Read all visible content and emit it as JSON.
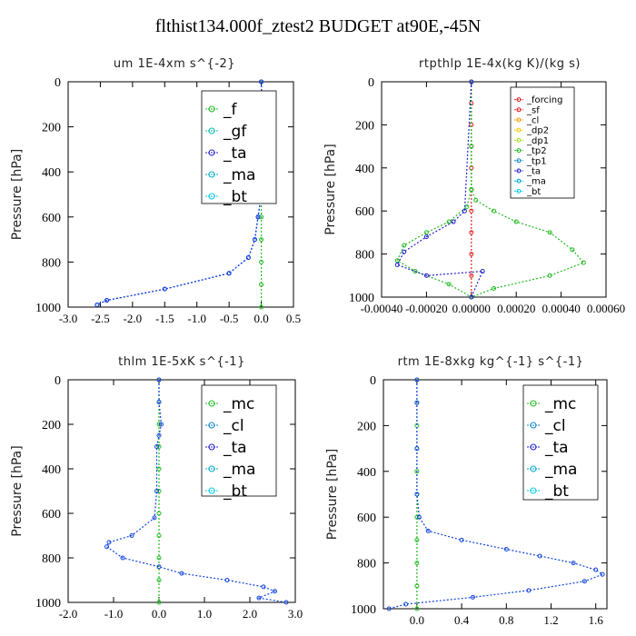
{
  "page_title": "flthist134.000f_ztest2  BUDGET at90E,-45N",
  "colors": {
    "green": "#22bb22",
    "blue": "#1144dd",
    "cyan": "#00ccee",
    "navy": "#2222cc",
    "red": "#dd2222",
    "orange": "#ff9900",
    "lime": "#88ee00",
    "yellowgreen": "#aadd22"
  },
  "chart_data": [
    {
      "type": "line",
      "title": "um  1E-4xm s^{-2}",
      "ylabel": "Pressure [hPa]",
      "xlim": [
        -3.0,
        0.5
      ],
      "ylim": [
        1000,
        0
      ],
      "xticks": [
        "-3.0",
        "-2.5",
        "-2.0",
        "-1.5",
        "-1.0",
        "-0.5",
        "0.0",
        "0.5"
      ],
      "xtick_values": [
        -3.0,
        -2.5,
        -2.0,
        -1.5,
        -1.0,
        -0.5,
        0.0,
        0.5
      ],
      "yticks": [
        "0",
        "200",
        "400",
        "600",
        "800",
        "1000"
      ],
      "ytick_values": [
        0,
        200,
        400,
        600,
        800,
        1000
      ],
      "legend": [
        {
          "name": "_f",
          "color": "#22bb22",
          "marker": "o"
        },
        {
          "name": "_gf",
          "color": "#00bbaa",
          "marker": "*"
        },
        {
          "name": "_ta",
          "color": "#2222cc",
          "marker": "+"
        },
        {
          "name": "_ma",
          "color": "#00aacc",
          "marker": "-"
        },
        {
          "name": "_bt",
          "color": "#00ccee",
          "marker": "d"
        }
      ],
      "series": [
        {
          "name": "_f",
          "color": "#22bb22",
          "x": [
            0,
            0,
            0,
            0,
            0,
            0,
            0,
            0,
            0,
            0,
            0
          ],
          "y": [
            0,
            100,
            200,
            300,
            400,
            500,
            600,
            700,
            800,
            900,
            1000
          ]
        },
        {
          "name": "_ta",
          "color": "#2222cc",
          "x": [
            0,
            0,
            0,
            0,
            0,
            0,
            -0.05,
            -0.1,
            -0.2,
            -0.5,
            -1.5,
            -2.4,
            -2.55
          ],
          "y": [
            0,
            100,
            200,
            300,
            400,
            500,
            600,
            700,
            780,
            850,
            920,
            970,
            990
          ]
        },
        {
          "name": "_bt",
          "color": "#1144dd",
          "x": [
            0,
            0,
            0,
            0,
            0,
            0,
            -0.05,
            -0.1,
            -0.2,
            -0.5,
            -1.5,
            -2.4,
            -2.55
          ],
          "y": [
            0,
            100,
            200,
            300,
            400,
            500,
            600,
            700,
            780,
            850,
            920,
            970,
            990
          ]
        }
      ]
    },
    {
      "type": "line",
      "title": "rtpthlp  1E-4x(kg K)/(kg s)",
      "ylabel": "Pressure [hPa]",
      "xlim": [
        -0.0004,
        0.0006
      ],
      "ylim": [
        1000,
        0
      ],
      "xticks": [
        "-0.00040",
        "-0.00020",
        "0.00000",
        "0.00020",
        "0.00040",
        "0.00060"
      ],
      "xtick_values": [
        -0.0004,
        -0.0002,
        0.0,
        0.0002,
        0.0004,
        0.0006
      ],
      "yticks": [
        "0",
        "200",
        "400",
        "600",
        "800",
        "1000"
      ],
      "ytick_values": [
        0,
        200,
        400,
        600,
        800,
        1000
      ],
      "legend": [
        {
          "name": "_forcing",
          "color": "#dd2222",
          "marker": "o"
        },
        {
          "name": "_sf",
          "color": "#dd2222",
          "marker": "*"
        },
        {
          "name": "_cl",
          "color": "#ff9900",
          "marker": "*"
        },
        {
          "name": "_dp2",
          "color": "#ffcc00",
          "marker": "o"
        },
        {
          "name": "_dp1",
          "color": "#aadd22",
          "marker": "*"
        },
        {
          "name": "_tp2",
          "color": "#22bb22",
          "marker": "o"
        },
        {
          "name": "_tp1",
          "color": "#1188cc",
          "marker": "*"
        },
        {
          "name": "_ta",
          "color": "#2222cc",
          "marker": "+"
        },
        {
          "name": "_ma",
          "color": "#00aacc",
          "marker": "-"
        },
        {
          "name": "_bt",
          "color": "#00ccee",
          "marker": "d"
        }
      ],
      "series": [
        {
          "name": "_forcing",
          "color": "#dd2222",
          "x": [
            0,
            0,
            0,
            0,
            0,
            0,
            0,
            0,
            0,
            0,
            0
          ],
          "y": [
            0,
            100,
            200,
            300,
            400,
            500,
            600,
            700,
            800,
            900,
            1000
          ]
        },
        {
          "name": "_dp1",
          "color": "#22bb22",
          "x": [
            0,
            0,
            0,
            2e-05,
            0.0001,
            0.0002,
            0.00035,
            0.00045,
            0.0005,
            0.00035,
            0.0001,
            0
          ],
          "y": [
            0,
            300,
            500,
            550,
            600,
            650,
            700,
            780,
            840,
            900,
            960,
            1000
          ]
        },
        {
          "name": "_tp2",
          "color": "#22bb22",
          "x": [
            0,
            0,
            -2e-05,
            -0.0001,
            -0.0002,
            -0.0003,
            -0.00033,
            -0.00025,
            -0.0001,
            0
          ],
          "y": [
            0,
            500,
            580,
            650,
            700,
            760,
            830,
            880,
            940,
            1000
          ]
        },
        {
          "name": "_ta",
          "color": "#2222cc",
          "x": [
            0,
            -3e-05,
            -8e-05,
            -0.0002,
            -0.0003,
            -0.00033,
            -0.0002,
            5e-05,
            0
          ],
          "y": [
            0,
            600,
            650,
            720,
            790,
            850,
            900,
            880,
            1000
          ]
        }
      ]
    },
    {
      "type": "line",
      "title": "thlm  1E-5xK s^{-1}",
      "ylabel": "Pressure [hPa]",
      "xlim": [
        -2.0,
        3.0
      ],
      "ylim": [
        1000,
        0
      ],
      "xticks": [
        "-2.0",
        "-1.0",
        "0.0",
        "1.0",
        "2.0",
        "3.0"
      ],
      "xtick_values": [
        -2.0,
        -1.0,
        0.0,
        1.0,
        2.0,
        3.0
      ],
      "yticks": [
        "0",
        "200",
        "400",
        "600",
        "800",
        "1000"
      ],
      "ytick_values": [
        0,
        200,
        400,
        600,
        800,
        1000
      ],
      "legend": [
        {
          "name": "_mc",
          "color": "#22bb22",
          "marker": "o"
        },
        {
          "name": "_cl",
          "color": "#1188cc",
          "marker": "*"
        },
        {
          "name": "_ta",
          "color": "#2222cc",
          "marker": "+"
        },
        {
          "name": "_ma",
          "color": "#00aacc",
          "marker": "-"
        },
        {
          "name": "_bt",
          "color": "#00ccee",
          "marker": "d"
        }
      ],
      "series": [
        {
          "name": "_mc",
          "color": "#22bb22",
          "x": [
            0,
            0,
            0,
            0,
            0,
            0,
            0,
            0,
            0,
            0,
            0
          ],
          "y": [
            0,
            100,
            200,
            300,
            400,
            500,
            600,
            700,
            800,
            900,
            1000
          ]
        },
        {
          "name": "_cl",
          "color": "#1144dd",
          "x": [
            0,
            0,
            0.05,
            0.0,
            -0.05,
            -0.05,
            -0.1,
            -0.6,
            -1.1,
            -1.15,
            -0.8,
            0.0,
            0.5,
            1.5,
            2.3,
            2.55,
            2.2,
            2.8
          ],
          "y": [
            0,
            100,
            200,
            250,
            300,
            500,
            620,
            700,
            730,
            750,
            800,
            840,
            870,
            900,
            930,
            950,
            980,
            1000
          ]
        }
      ]
    },
    {
      "type": "line",
      "title": "rtm  1E-8xkg kg^{-1} s^{-1}",
      "ylabel": "Pressure [hPa]",
      "xlim": [
        -0.3,
        1.7
      ],
      "ylim": [
        1000,
        0
      ],
      "xticks": [
        "0.0",
        "0.4",
        "0.8",
        "1.2",
        "1.6"
      ],
      "xtick_values": [
        0.0,
        0.4,
        0.8,
        1.2,
        1.6
      ],
      "yticks": [
        "0",
        "200",
        "400",
        "600",
        "800",
        "1000"
      ],
      "ytick_values": [
        0,
        200,
        400,
        600,
        800,
        1000
      ],
      "legend": [
        {
          "name": "_mc",
          "color": "#22bb22",
          "marker": "o"
        },
        {
          "name": "_cl",
          "color": "#1188cc",
          "marker": "*"
        },
        {
          "name": "_ta",
          "color": "#2222cc",
          "marker": "+"
        },
        {
          "name": "_ma",
          "color": "#00aacc",
          "marker": "-"
        },
        {
          "name": "_bt",
          "color": "#00ccee",
          "marker": "d"
        }
      ],
      "series": [
        {
          "name": "_mc",
          "color": "#22bb22",
          "x": [
            0,
            0,
            0,
            0,
            0,
            0,
            0,
            0,
            0,
            0,
            0
          ],
          "y": [
            0,
            100,
            200,
            300,
            400,
            500,
            600,
            700,
            800,
            900,
            1000
          ]
        },
        {
          "name": "_cl",
          "color": "#1144dd",
          "x": [
            0,
            0,
            0,
            0,
            0.02,
            0.1,
            0.4,
            0.8,
            1.1,
            1.4,
            1.6,
            1.66,
            1.5,
            1.0,
            0.5,
            -0.1,
            -0.25
          ],
          "y": [
            0,
            100,
            300,
            500,
            600,
            660,
            700,
            740,
            770,
            800,
            830,
            850,
            880,
            920,
            950,
            980,
            1000
          ]
        }
      ]
    }
  ]
}
